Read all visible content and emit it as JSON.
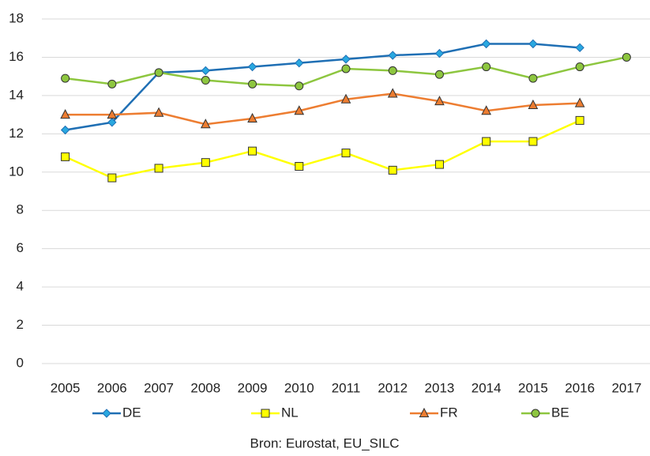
{
  "chart_data": {
    "type": "line",
    "categories": [
      "2005",
      "2006",
      "2007",
      "2008",
      "2009",
      "2010",
      "2011",
      "2012",
      "2013",
      "2014",
      "2015",
      "2016",
      "2017"
    ],
    "series": [
      {
        "name": "DE",
        "color": "#1f6fb4",
        "marker": "diamond",
        "values": [
          12.2,
          12.6,
          15.2,
          15.3,
          15.5,
          15.7,
          15.9,
          16.1,
          16.2,
          16.7,
          16.7,
          16.5,
          null
        ]
      },
      {
        "name": "NL",
        "color": "#ffff00",
        "marker": "square",
        "values": [
          10.8,
          9.7,
          10.2,
          10.5,
          11.1,
          10.3,
          11.0,
          10.1,
          10.4,
          11.6,
          11.6,
          12.7,
          null
        ]
      },
      {
        "name": "FR",
        "color": "#ed7d31",
        "marker": "triangle",
        "values": [
          13.0,
          13.0,
          13.1,
          12.5,
          12.8,
          13.2,
          13.8,
          14.1,
          13.7,
          13.2,
          13.5,
          13.6,
          null
        ]
      },
      {
        "name": "BE",
        "color": "#8dc63f",
        "marker": "circle",
        "values": [
          14.9,
          14.6,
          15.2,
          14.8,
          14.6,
          14.5,
          15.4,
          15.3,
          15.1,
          15.5,
          14.9,
          15.5,
          16.0
        ]
      }
    ],
    "ylim": [
      0,
      18
    ],
    "yticks": [
      0,
      2,
      4,
      6,
      8,
      10,
      12,
      14,
      16,
      18
    ],
    "grid": true,
    "source": "Bron: Eurostat, EU_SILC"
  }
}
